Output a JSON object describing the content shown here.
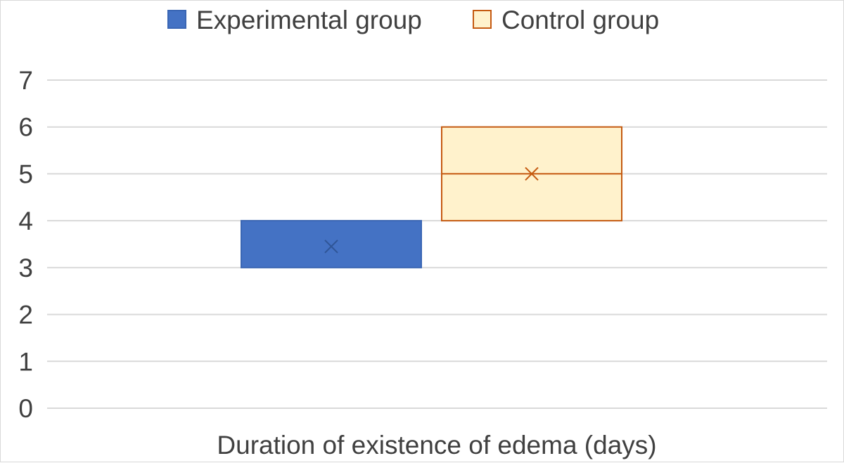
{
  "chart_data": {
    "type": "box",
    "title": "",
    "xlabel": "Duration of existence of edema (days)",
    "ylabel": "",
    "ylim": [
      0,
      7
    ],
    "yticks": [
      "0",
      "1",
      "2",
      "3",
      "4",
      "5",
      "6",
      "7"
    ],
    "grid": true,
    "legend_position": "top",
    "series": [
      {
        "name": "Experimental group",
        "color": "#4472c4",
        "fill": "#4472c4",
        "stroke": "#3a66b4",
        "mean_marker_color": "#2f5597",
        "q1": 3,
        "median": 4,
        "q3": 4,
        "min": 3,
        "max": 4,
        "mean": 3.45
      },
      {
        "name": "Control group",
        "color": "#c55a11",
        "fill": "#fff2cc",
        "stroke": "#c55a11",
        "mean_marker_color": "#c55a11",
        "q1": 4,
        "median": 5,
        "q3": 6,
        "min": 4,
        "max": 6,
        "mean": 5
      }
    ]
  }
}
